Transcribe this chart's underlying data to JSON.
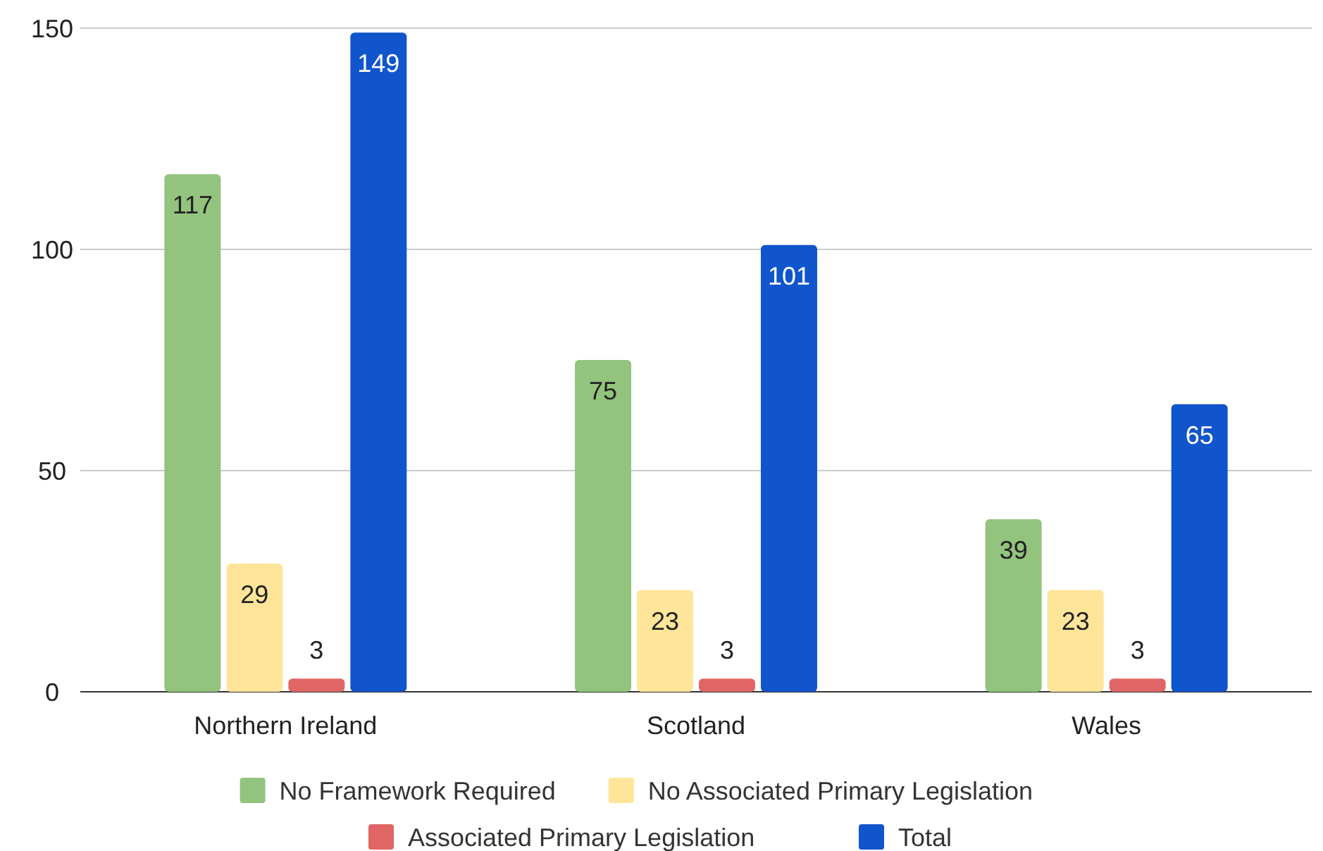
{
  "chart_data": {
    "type": "bar",
    "categories": [
      "Northern Ireland",
      "Scotland",
      "Wales"
    ],
    "series": [
      {
        "name": "No Framework Required",
        "color": "#93c47d",
        "values": [
          117,
          75,
          39
        ]
      },
      {
        "name": "No Associated Primary Legislation",
        "color": "#ffe599",
        "values": [
          29,
          23,
          23
        ]
      },
      {
        "name": "Associated Primary Legislation",
        "color": "#e06666",
        "values": [
          3,
          3,
          3
        ]
      },
      {
        "name": "Total",
        "color": "#1155cc",
        "values": [
          149,
          101,
          65
        ]
      }
    ],
    "ylim": [
      0,
      150
    ],
    "yticks": [
      0,
      50,
      100,
      150
    ],
    "grid": "y",
    "legend": "bottom",
    "data_labels": true
  }
}
